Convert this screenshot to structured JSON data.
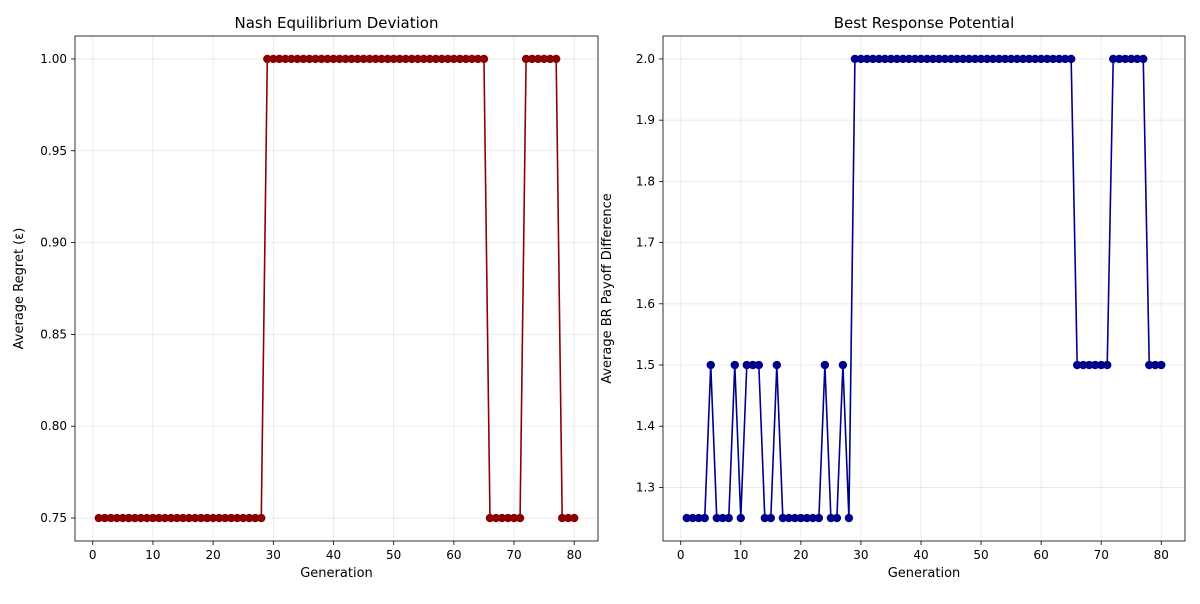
{
  "chart_data": [
    {
      "type": "line",
      "title": "Nash Equilibrium Deviation",
      "xlabel": "Generation",
      "ylabel": "Average Regret (ε)",
      "color": "#8b0000",
      "marker": "circle",
      "grid": true,
      "xlim": [
        -2.95,
        83.95
      ],
      "ylim": [
        0.7375,
        1.0125
      ],
      "xticks": [
        0,
        10,
        20,
        30,
        40,
        50,
        60,
        70,
        80
      ],
      "yticks": [
        0.75,
        0.8,
        0.85,
        0.9,
        0.95,
        1.0
      ],
      "ytick_labels": [
        "0.75",
        "0.80",
        "0.85",
        "0.90",
        "0.95",
        "1.00"
      ],
      "x": [
        1,
        2,
        3,
        4,
        5,
        6,
        7,
        8,
        9,
        10,
        11,
        12,
        13,
        14,
        15,
        16,
        17,
        18,
        19,
        20,
        21,
        22,
        23,
        24,
        25,
        26,
        27,
        28,
        29,
        30,
        31,
        32,
        33,
        34,
        35,
        36,
        37,
        38,
        39,
        40,
        41,
        42,
        43,
        44,
        45,
        46,
        47,
        48,
        49,
        50,
        51,
        52,
        53,
        54,
        55,
        56,
        57,
        58,
        59,
        60,
        61,
        62,
        63,
        64,
        65,
        66,
        67,
        68,
        69,
        70,
        71,
        72,
        73,
        74,
        75,
        76,
        77,
        78,
        79,
        80
      ],
      "y": [
        0.75,
        0.75,
        0.75,
        0.75,
        0.75,
        0.75,
        0.75,
        0.75,
        0.75,
        0.75,
        0.75,
        0.75,
        0.75,
        0.75,
        0.75,
        0.75,
        0.75,
        0.75,
        0.75,
        0.75,
        0.75,
        0.75,
        0.75,
        0.75,
        0.75,
        0.75,
        0.75,
        0.75,
        1.0,
        1.0,
        1.0,
        1.0,
        1.0,
        1.0,
        1.0,
        1.0,
        1.0,
        1.0,
        1.0,
        1.0,
        1.0,
        1.0,
        1.0,
        1.0,
        1.0,
        1.0,
        1.0,
        1.0,
        1.0,
        1.0,
        1.0,
        1.0,
        1.0,
        1.0,
        1.0,
        1.0,
        1.0,
        1.0,
        1.0,
        1.0,
        1.0,
        1.0,
        1.0,
        1.0,
        1.0,
        0.75,
        0.75,
        0.75,
        0.75,
        0.75,
        0.75,
        1.0,
        1.0,
        1.0,
        1.0,
        1.0,
        1.0,
        0.75,
        0.75,
        0.75
      ]
    },
    {
      "type": "line",
      "title": "Best Response Potential",
      "xlabel": "Generation",
      "ylabel": "Average BR Payoff Difference",
      "color": "#00008b",
      "marker": "circle",
      "grid": true,
      "xlim": [
        -2.95,
        83.95
      ],
      "ylim": [
        1.2125,
        2.0375
      ],
      "xticks": [
        0,
        10,
        20,
        30,
        40,
        50,
        60,
        70,
        80
      ],
      "yticks": [
        1.3,
        1.4,
        1.5,
        1.6,
        1.7,
        1.8,
        1.9,
        2.0
      ],
      "ytick_labels": [
        "1.3",
        "1.4",
        "1.5",
        "1.6",
        "1.7",
        "1.8",
        "1.9",
        "2.0"
      ],
      "x": [
        1,
        2,
        3,
        4,
        5,
        6,
        7,
        8,
        9,
        10,
        11,
        12,
        13,
        14,
        15,
        16,
        17,
        18,
        19,
        20,
        21,
        22,
        23,
        24,
        25,
        26,
        27,
        28,
        29,
        30,
        31,
        32,
        33,
        34,
        35,
        36,
        37,
        38,
        39,
        40,
        41,
        42,
        43,
        44,
        45,
        46,
        47,
        48,
        49,
        50,
        51,
        52,
        53,
        54,
        55,
        56,
        57,
        58,
        59,
        60,
        61,
        62,
        63,
        64,
        65,
        66,
        67,
        68,
        69,
        70,
        71,
        72,
        73,
        74,
        75,
        76,
        77,
        78,
        79,
        80
      ],
      "y": [
        1.25,
        1.25,
        1.25,
        1.25,
        1.5,
        1.25,
        1.25,
        1.25,
        1.5,
        1.25,
        1.5,
        1.5,
        1.5,
        1.25,
        1.25,
        1.5,
        1.25,
        1.25,
        1.25,
        1.25,
        1.25,
        1.25,
        1.25,
        1.5,
        1.25,
        1.25,
        1.5,
        1.25,
        2.0,
        2.0,
        2.0,
        2.0,
        2.0,
        2.0,
        2.0,
        2.0,
        2.0,
        2.0,
        2.0,
        2.0,
        2.0,
        2.0,
        2.0,
        2.0,
        2.0,
        2.0,
        2.0,
        2.0,
        2.0,
        2.0,
        2.0,
        2.0,
        2.0,
        2.0,
        2.0,
        2.0,
        2.0,
        2.0,
        2.0,
        2.0,
        2.0,
        2.0,
        2.0,
        2.0,
        2.0,
        1.5,
        1.5,
        1.5,
        1.5,
        1.5,
        1.5,
        2.0,
        2.0,
        2.0,
        2.0,
        2.0,
        2.0,
        1.5,
        1.5,
        1.5
      ]
    }
  ]
}
